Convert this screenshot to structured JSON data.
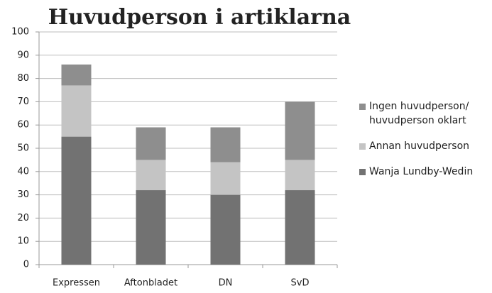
{
  "chart_data": {
    "type": "stacked_bar",
    "title": "Huvudperson i artiklarna",
    "categories": [
      "Expressen",
      "Aftonbladet",
      "DN",
      "SvD"
    ],
    "series": [
      {
        "name": "Wanja Lundby-Wedin",
        "color": "#727272",
        "values": [
          55,
          32,
          30,
          32
        ]
      },
      {
        "name": "Annan huvudperson",
        "color": "#c4c4c4",
        "values": [
          22,
          13,
          14,
          13
        ]
      },
      {
        "name": "Ingen huvudperson/ huvudperson oklart",
        "color": "#8e8e8e",
        "values": [
          9,
          14,
          15,
          25
        ]
      }
    ],
    "ylim": [
      0,
      100
    ],
    "yticks": [
      0,
      10,
      20,
      30,
      40,
      50,
      60,
      70,
      80,
      90,
      100
    ],
    "grid": true,
    "legend": "right"
  }
}
